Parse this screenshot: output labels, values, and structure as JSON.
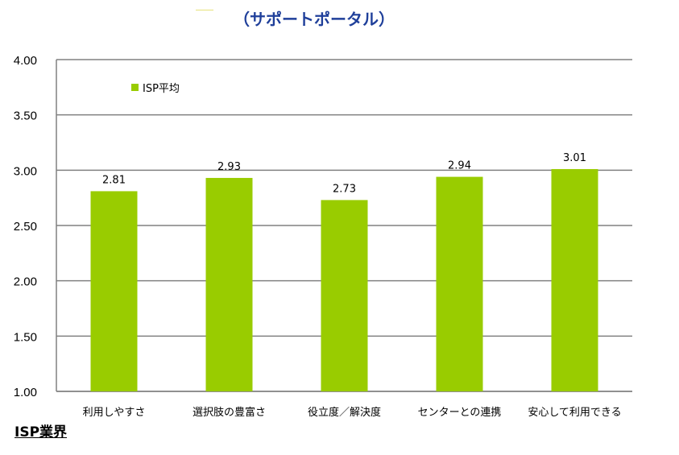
{
  "title": "（サポートポータル）",
  "footer_label": "ISP業界",
  "chart_data": {
    "type": "bar",
    "categories": [
      "利用しやすさ",
      "選択肢の豊富さ",
      "役立度／解決度",
      "センターとの連携",
      "安心して利用できる"
    ],
    "series": [
      {
        "name": "ISP平均",
        "values": [
          2.81,
          2.93,
          2.73,
          2.94,
          3.01
        ],
        "color": "#99cc00"
      }
    ],
    "data_labels": [
      "2.81",
      "2.93",
      "2.73",
      "2.94",
      "3.01"
    ],
    "yticks": [
      "1.00",
      "1.50",
      "2.00",
      "2.50",
      "3.00",
      "3.50",
      "4.00"
    ],
    "ylim": [
      1.0,
      4.0
    ],
    "grid": true,
    "legend_position": "top-left"
  }
}
